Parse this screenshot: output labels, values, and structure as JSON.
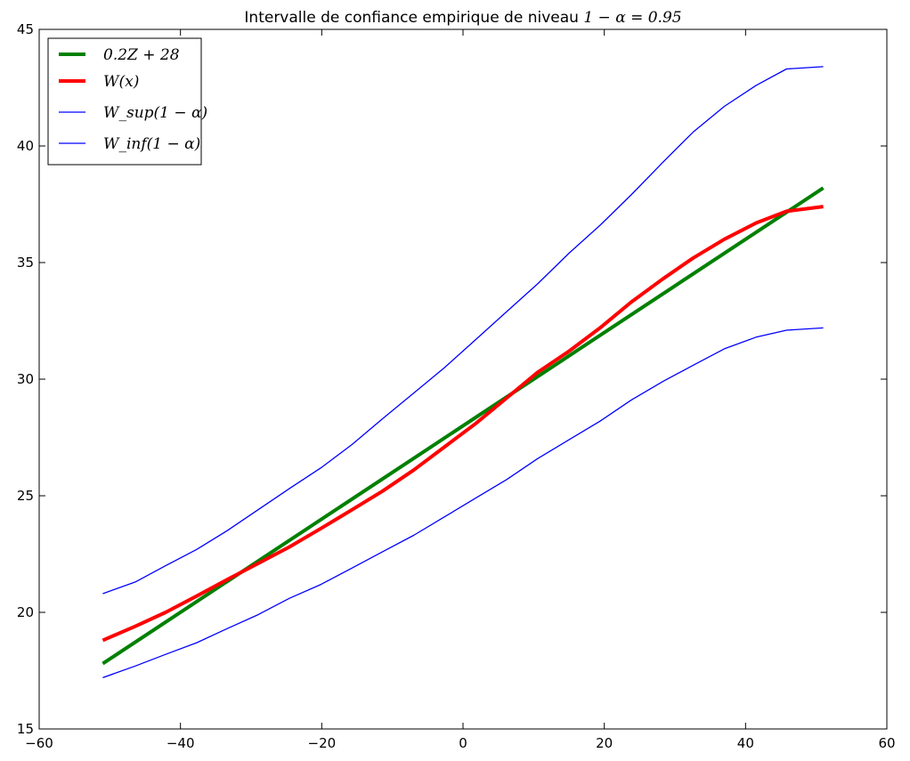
{
  "chart_data": {
    "type": "line",
    "title": {
      "text": "Intervalle de confiance empirique de niveau ",
      "math": "1 − α = 0.95"
    },
    "xlabel": "",
    "ylabel": "",
    "xlim": [
      -60,
      60
    ],
    "ylim": [
      15,
      45
    ],
    "xticks": [
      -60,
      -40,
      -20,
      0,
      20,
      40,
      60
    ],
    "yticks": [
      15,
      20,
      25,
      30,
      35,
      40,
      45
    ],
    "xtick_labels": [
      "−60",
      "−40",
      "−20",
      "0",
      "20",
      "40",
      "60"
    ],
    "ytick_labels": [
      "15",
      "20",
      "25",
      "30",
      "35",
      "40",
      "45"
    ],
    "grid": false,
    "legend_position": "top-left",
    "series": [
      {
        "name": "0.2Z + 28",
        "color": "#008000",
        "width": "thick",
        "x": [
          -51,
          51
        ],
        "y": [
          17.8,
          38.2
        ]
      },
      {
        "name": "W(x)",
        "color": "#ff0000",
        "width": "thick",
        "x": [
          -51,
          -46.4,
          -42.1,
          -37.7,
          -33.4,
          -29,
          -24.6,
          -20.1,
          -15.7,
          -11.4,
          -7,
          -2.6,
          1.8,
          6.2,
          10.6,
          15,
          19.4,
          23.8,
          28.3,
          32.6,
          37,
          41.5,
          45.8,
          51
        ],
        "y": [
          18.8,
          19.4,
          20.0,
          20.7,
          21.4,
          22.1,
          22.8,
          23.6,
          24.4,
          25.2,
          26.1,
          27.1,
          28.1,
          29.2,
          30.3,
          31.2,
          32.2,
          33.3,
          34.3,
          35.2,
          36.0,
          36.7,
          37.2,
          37.4
        ]
      },
      {
        "name": "W_sup(1 − α)",
        "color": "#0000ff",
        "width": "thin",
        "x": [
          -51,
          -46.4,
          -42.1,
          -37.7,
          -33.4,
          -29,
          -24.6,
          -20.1,
          -15.7,
          -11.4,
          -7,
          -2.6,
          1.8,
          6.2,
          10.6,
          15,
          19.4,
          23.8,
          28.3,
          32.6,
          37,
          41.5,
          45.8,
          51
        ],
        "y": [
          20.8,
          21.3,
          22.0,
          22.7,
          23.5,
          24.4,
          25.3,
          26.2,
          27.2,
          28.3,
          29.4,
          30.5,
          31.7,
          32.9,
          34.1,
          35.4,
          36.6,
          37.9,
          39.3,
          40.6,
          41.7,
          42.6,
          43.3,
          43.4
        ]
      },
      {
        "name": "W_inf(1 − α)",
        "color": "#0000ff",
        "width": "thin",
        "x": [
          -51,
          -46.4,
          -42.1,
          -37.7,
          -33.4,
          -29,
          -24.6,
          -20.1,
          -15.7,
          -11.4,
          -7,
          -2.6,
          1.8,
          6.2,
          10.6,
          15,
          19.4,
          23.8,
          28.3,
          32.6,
          37,
          41.5,
          45.8,
          51
        ],
        "y": [
          17.2,
          17.7,
          18.2,
          18.7,
          19.3,
          19.9,
          20.6,
          21.2,
          21.9,
          22.6,
          23.3,
          24.1,
          24.9,
          25.7,
          26.6,
          27.4,
          28.2,
          29.1,
          29.9,
          30.6,
          31.3,
          31.8,
          32.1,
          32.2
        ]
      }
    ]
  }
}
